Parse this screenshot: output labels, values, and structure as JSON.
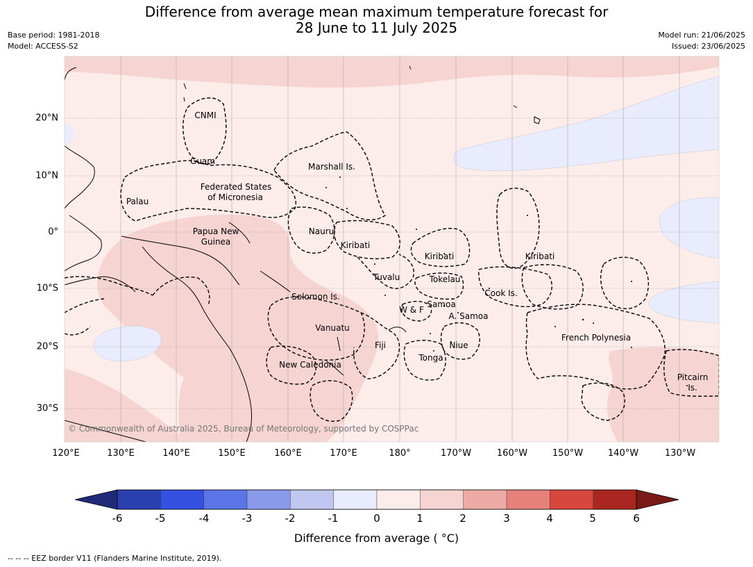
{
  "title_line1": "Difference from average mean maximum temperature forecast for",
  "title_line2": "28 June to 11 July 2025",
  "meta_left": [
    "Base period: 1981-2018",
    "Model: ACCESS-S2"
  ],
  "meta_right": [
    "Model run: 21/06/2025",
    "Issued: 23/06/2025"
  ],
  "lon_labels": [
    "120°E",
    "130°E",
    "140°E",
    "150°E",
    "160°E",
    "170°E",
    "180°",
    "170°W",
    "160°W",
    "150°W",
    "140°W",
    "130°W"
  ],
  "lat_labels": [
    "20°N",
    "10°N",
    "0°",
    "10°S",
    "20°S",
    "30°S"
  ],
  "regions": [
    "CNMI",
    "Guam",
    "Marshall Is.",
    "Palau",
    "Federated States",
    "of Micronesia",
    "Papua New",
    "Guinea",
    "Nauru",
    "Kiribati",
    "Kiribati",
    "Kiribati",
    "Tuvalu",
    "Tokelau",
    "Cook Is.",
    "Solomon Is.",
    "W & F",
    "Samoa",
    "A. Samoa",
    "Vanuatu",
    "Fiji",
    "Niue",
    "Tonga",
    "French Polynesia",
    "New Caledonia",
    "Pitcairn",
    "Is."
  ],
  "copyright": "© Commonwealth of Australia 2025, Bureau of Meteorology, supported by COSPPac",
  "colorbar": {
    "label": "Difference from average ( °C)",
    "ticks": [
      "-6",
      "-5",
      "-4",
      "-3",
      "-2",
      "-1",
      "0",
      "1",
      "2",
      "3",
      "4",
      "5",
      "6"
    ],
    "colors": [
      "#1f2a78",
      "#2a3fb0",
      "#3350e0",
      "#5b74e6",
      "#8a9aea",
      "#c0c8f2",
      "#e8ecfc",
      "#fcecea",
      "#f6d4d2",
      "#eeaba6",
      "#e5807a",
      "#d8473e",
      "#aa2620",
      "#7a1a18"
    ]
  },
  "footer": "--  --  -- EEZ border V11 (Flanders Marine Institute, 2019)."
}
